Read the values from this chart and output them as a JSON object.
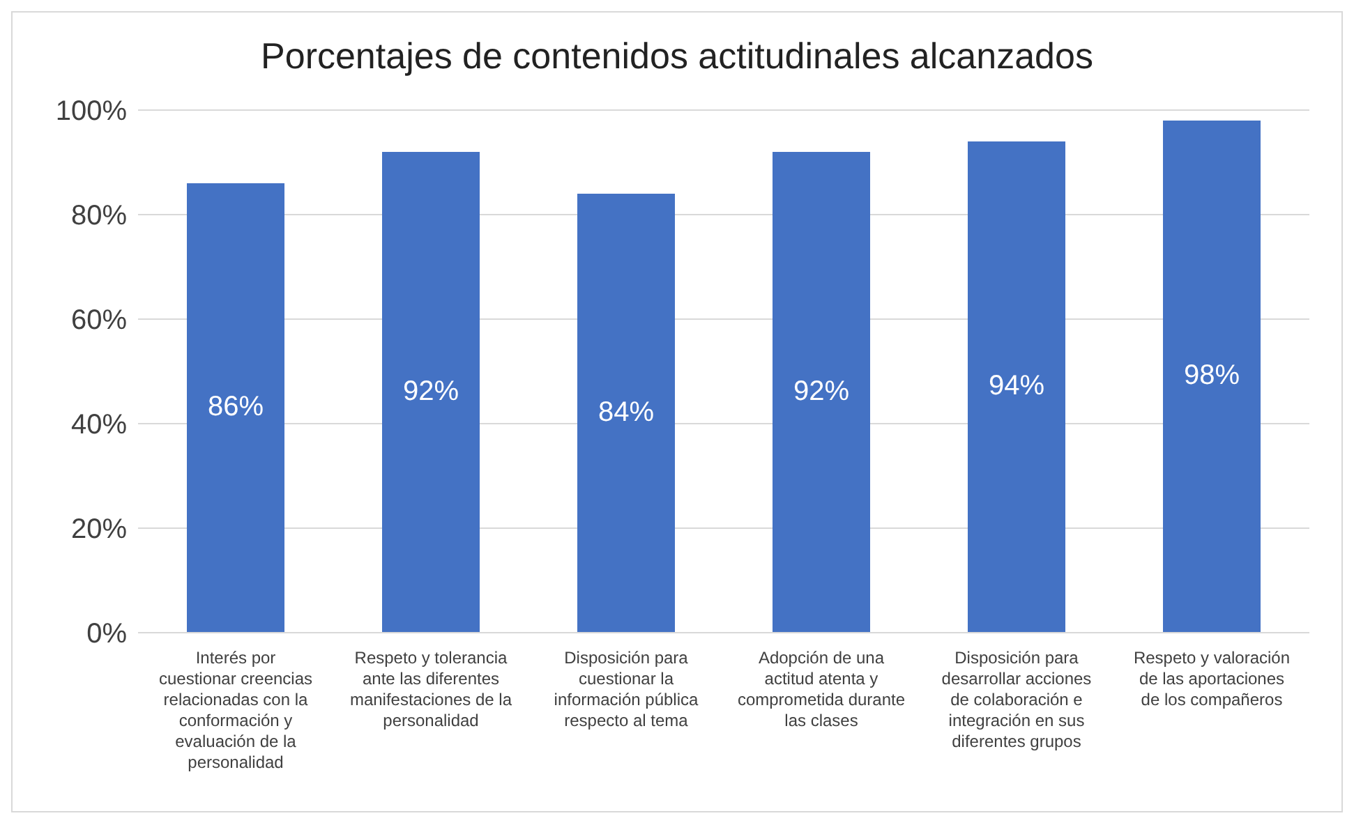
{
  "chart_data": {
    "type": "bar",
    "title": "Porcentajes de contenidos actitudinales alcanzados",
    "categories": [
      "Interés por cuestionar creencias relacionadas con la conformación y evaluación de la personalidad",
      "Respeto y tolerancia ante las diferentes manifestaciones de la personalidad",
      "Disposición para cuestionar la información pública respecto al tema",
      "Adopción de una actitud atenta y comprometida durante las clases",
      "Disposición para desarrollar acciones de colaboración e integración en sus diferentes grupos",
      "Respeto y valoración de las aportaciones de los compañeros"
    ],
    "values": [
      86,
      92,
      84,
      92,
      94,
      98
    ],
    "value_labels": [
      "86%",
      "92%",
      "84%",
      "92%",
      "94%",
      "98%"
    ],
    "color": "#4472c4",
    "ylim": [
      0,
      100
    ],
    "yticks": [
      {
        "value": 0,
        "label": "0%"
      },
      {
        "value": 20,
        "label": "20%"
      },
      {
        "value": 40,
        "label": "40%"
      },
      {
        "value": 60,
        "label": "60%"
      },
      {
        "value": 80,
        "label": "80%"
      },
      {
        "value": 100,
        "label": "100%"
      }
    ],
    "grid": "y"
  }
}
